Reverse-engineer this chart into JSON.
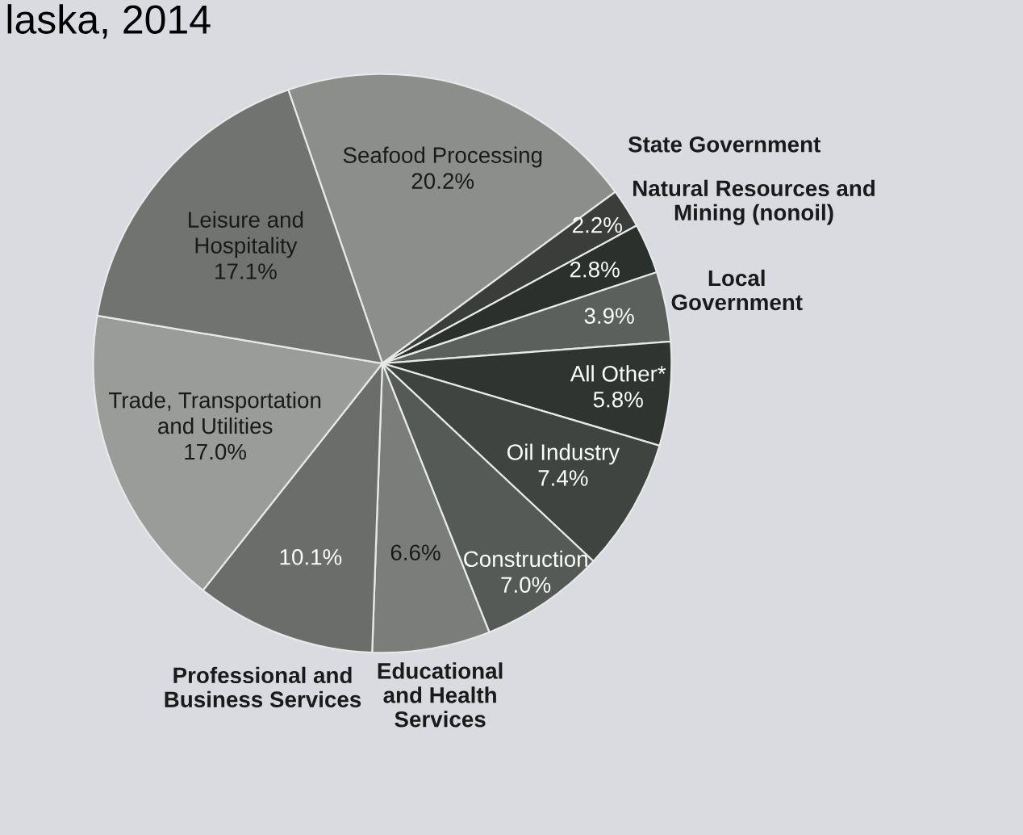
{
  "chart_data": {
    "type": "pie",
    "title": "laska, 2014",
    "categories": [
      "Seafood Processing",
      "State Government",
      "Natural Resources and\nMining (nonoil)",
      "Local\nGovernment",
      "All Other*",
      "Oil Industry",
      "Construction",
      "Educational\nand Health\nServices",
      "Professional and\nBusiness Services",
      "Trade, Transportation\nand Utilities",
      "Leisure and\nHospitality"
    ],
    "values": [
      20.2,
      2.2,
      2.8,
      3.9,
      5.8,
      7.4,
      7.0,
      6.6,
      10.1,
      17.0,
      17.1
    ],
    "value_labels": [
      "20.2%",
      "2.2%",
      "2.8%",
      "3.9%",
      "5.8%",
      "7.4%",
      "7.0%",
      "6.6%",
      "10.1%",
      "17.0%",
      "17.1%"
    ],
    "colors": [
      "#8c8e8c",
      "#3a3d3a",
      "#2b302c",
      "#5c605c",
      "#2f3430",
      "#3f4440",
      "#565a56",
      "#7a7d7a",
      "#6a6d6a",
      "#9a9c9a",
      "#707370"
    ],
    "legend": false
  }
}
